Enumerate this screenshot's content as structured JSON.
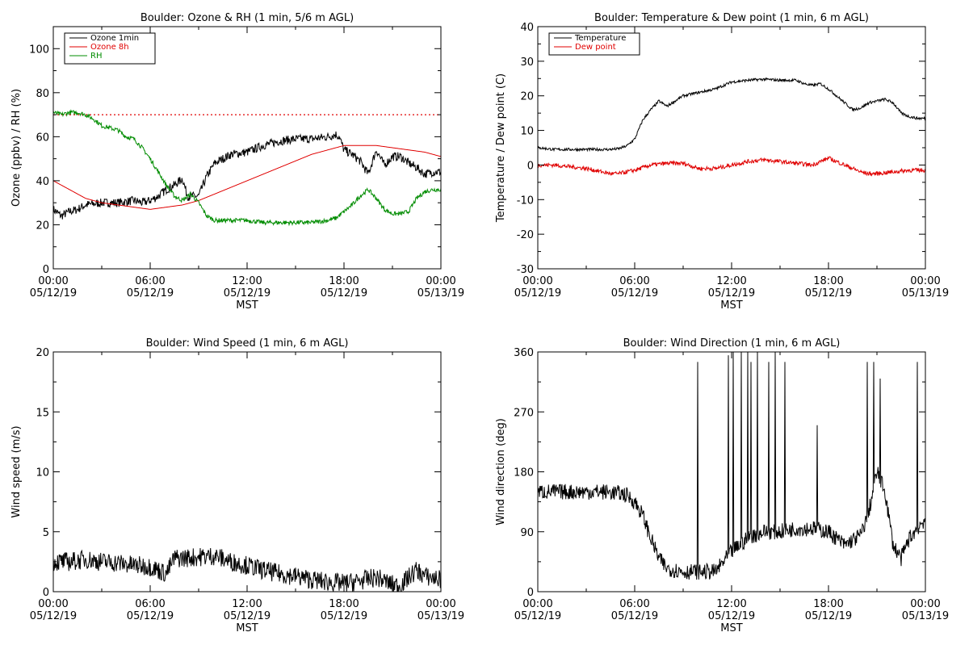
{
  "x_ticks_time": [
    "00:00",
    "06:00",
    "12:00",
    "18:00",
    "00:00"
  ],
  "x_ticks_date": [
    "05/12/19",
    "05/12/19",
    "05/12/19",
    "05/12/19",
    "05/13/19"
  ],
  "x_label": "MST",
  "chart_data": [
    {
      "type": "line",
      "title": "Boulder: Ozone & RH (1 min, 5/6 m AGL)",
      "xlabel": "MST",
      "ylabel": "Ozone (ppbv) / RH (%)",
      "xlim": [
        0,
        24
      ],
      "ylim": [
        0,
        110
      ],
      "yticks": [
        0,
        20,
        40,
        60,
        80,
        100
      ],
      "grid": false,
      "legend": "top-left",
      "reference_line": {
        "y": 70,
        "color": "#e00000",
        "style": "dotted"
      },
      "series": [
        {
          "name": "Ozone 1min",
          "color": "#000000",
          "noise": 2.0,
          "x": [
            0,
            0.5,
            1,
            1.5,
            2,
            3,
            4,
            5,
            5.5,
            6,
            6.5,
            7,
            7.5,
            8,
            8.3,
            8.6,
            9,
            9.5,
            10,
            11,
            12,
            13,
            14,
            15,
            16,
            17,
            17.5,
            17.7,
            18,
            18.5,
            19,
            19.5,
            20,
            20.5,
            21,
            21.5,
            22,
            22.5,
            23,
            23.5,
            24
          ],
          "y": [
            27,
            24,
            26,
            27,
            29,
            30,
            30,
            31,
            30,
            31,
            33,
            36,
            38,
            41,
            33,
            33,
            33,
            42,
            48,
            52,
            53,
            56,
            58,
            59,
            59,
            60,
            61,
            60,
            54,
            52,
            49,
            43,
            54,
            47,
            51,
            51,
            48,
            46,
            43,
            44,
            44
          ]
        },
        {
          "name": "Ozone 8h",
          "color": "#e00000",
          "noise": 0,
          "x": [
            0,
            1,
            2,
            3,
            4,
            5,
            6,
            7,
            8,
            9,
            10,
            11,
            12,
            13,
            14,
            15,
            16,
            17,
            18,
            19,
            20,
            21,
            22,
            23,
            24
          ],
          "y": [
            40,
            36,
            32,
            30,
            29,
            28,
            27,
            28,
            29,
            31,
            34,
            37,
            40,
            43,
            46,
            49,
            52,
            54,
            56,
            56,
            56,
            55,
            54,
            53,
            51
          ]
        },
        {
          "name": "RH",
          "color": "#008c00",
          "noise": 1.0,
          "x": [
            0,
            0.5,
            1,
            1.5,
            2,
            2.5,
            3,
            4,
            4.5,
            5,
            5.5,
            6,
            6.5,
            7,
            7.5,
            8,
            8.5,
            9,
            9.5,
            10,
            11,
            12,
            13,
            14,
            15,
            16,
            17,
            17.5,
            18,
            18.5,
            19,
            19.5,
            20,
            20.5,
            21,
            21.5,
            22,
            22.5,
            23,
            23.5,
            24
          ],
          "y": [
            71,
            70,
            71,
            71,
            70,
            68,
            65,
            63,
            60,
            59,
            55,
            50,
            44,
            38,
            33,
            31,
            34,
            30,
            24,
            22,
            22,
            22,
            21,
            21,
            21,
            21,
            22,
            23,
            26,
            29,
            33,
            36,
            32,
            27,
            25,
            25,
            26,
            32,
            35,
            36,
            36
          ]
        }
      ]
    },
    {
      "type": "line",
      "title": "Boulder: Temperature & Dew point (1 min, 6 m AGL)",
      "xlabel": "MST",
      "ylabel": "Temperature / Dew point (C)",
      "xlim": [
        0,
        24
      ],
      "ylim": [
        -30,
        40
      ],
      "yticks": [
        -30,
        -20,
        -10,
        0,
        10,
        20,
        30,
        40
      ],
      "grid": false,
      "legend": "top-left",
      "series": [
        {
          "name": "Temperature",
          "color": "#000000",
          "noise": 0.4,
          "x": [
            0,
            1,
            2,
            3,
            4,
            4.5,
            5,
            5.5,
            6,
            6.5,
            7,
            7.5,
            8,
            9,
            10,
            11,
            12,
            13,
            14,
            15,
            16,
            16.5,
            17,
            17.5,
            18,
            18.5,
            19,
            19.5,
            20,
            20.5,
            21,
            21.5,
            22,
            22.5,
            23,
            23.5,
            24
          ],
          "y": [
            5,
            4.5,
            4.5,
            4.5,
            4.5,
            4.5,
            4.7,
            5.5,
            7.5,
            13,
            16,
            18.5,
            17,
            20,
            21,
            22,
            24,
            24.5,
            24.8,
            24.5,
            24.5,
            23.5,
            23,
            23.5,
            22,
            20,
            18,
            16,
            16.5,
            18,
            18.5,
            19,
            18,
            15,
            14,
            13.5,
            13.5
          ]
        },
        {
          "name": "Dew point",
          "color": "#e00000",
          "noise": 0.6,
          "x": [
            0,
            1,
            2,
            3,
            4,
            4.5,
            5,
            5.5,
            6,
            7,
            8,
            9,
            10,
            11,
            12,
            13,
            14,
            15,
            16,
            17,
            18,
            18.5,
            19,
            19.5,
            20,
            20.5,
            21,
            22,
            23,
            24
          ],
          "y": [
            0,
            0,
            -0.5,
            -1,
            -2,
            -2.5,
            -2.5,
            -2,
            -1.5,
            0,
            0.5,
            0.5,
            -1,
            -1,
            0,
            1,
            1.5,
            1,
            0.5,
            0,
            2,
            1,
            0,
            -1,
            -2,
            -2.5,
            -2.5,
            -2,
            -1.5,
            -1.5
          ]
        }
      ]
    },
    {
      "type": "line",
      "title": "Boulder: Wind Speed (1 min, 6 m AGL)",
      "xlabel": "MST",
      "ylabel": "Wind speed (m/s)",
      "xlim": [
        0,
        24
      ],
      "ylim": [
        0,
        20
      ],
      "yticks": [
        0,
        5,
        10,
        15,
        20
      ],
      "grid": false,
      "series": [
        {
          "color": "#000000",
          "noise": 0.8,
          "x": [
            0,
            1,
            2,
            3,
            4,
            5,
            6,
            6.5,
            7,
            7.5,
            8,
            9,
            10,
            11,
            12,
            13,
            14,
            15,
            16,
            17,
            18,
            19,
            20,
            21,
            21.5,
            22,
            22.5,
            23,
            24
          ],
          "y": [
            2.5,
            2.5,
            2.7,
            2.5,
            2.4,
            2.2,
            2.1,
            1.8,
            1.5,
            2.8,
            2.8,
            2.9,
            3,
            2.5,
            2.2,
            1.8,
            1.5,
            1.3,
            1,
            0.8,
            0.7,
            0.9,
            1.2,
            0.6,
            0.5,
            1.2,
            1.8,
            1.3,
            1
          ]
        }
      ]
    },
    {
      "type": "line",
      "title": "Boulder: Wind Direction (1 min, 6 m AGL)",
      "xlabel": "MST",
      "ylabel": "Wind direction (deg)",
      "xlim": [
        0,
        24
      ],
      "ylim": [
        0,
        360
      ],
      "yticks": [
        0,
        90,
        180,
        270,
        360
      ],
      "grid": false,
      "series": [
        {
          "color": "#000000",
          "noise": 12,
          "x": [
            0,
            1,
            2,
            3,
            4,
            5,
            5.5,
            6,
            6.5,
            7,
            7.5,
            8,
            9,
            10,
            11,
            12,
            13,
            14,
            15,
            16,
            17,
            18,
            19,
            20,
            20.5,
            21,
            21.5,
            22,
            22.5,
            23,
            24
          ],
          "y": [
            150,
            150,
            150,
            150,
            150,
            148,
            145,
            135,
            115,
            80,
            50,
            35,
            30,
            30,
            30,
            60,
            80,
            90,
            90,
            95,
            95,
            90,
            70,
            85,
            120,
            180,
            150,
            70,
            50,
            80,
            110
          ],
          "spikes_x": [
            9.9,
            11.8,
            12.1,
            12.6,
            13.0,
            13.2,
            13.6,
            14.3,
            14.7,
            15.3,
            17.3,
            20.4,
            20.8,
            21.2,
            23.5
          ],
          "spikes_y": [
            345,
            355,
            360,
            360,
            360,
            345,
            360,
            345,
            360,
            345,
            250,
            345,
            345,
            320,
            345
          ]
        }
      ]
    }
  ]
}
